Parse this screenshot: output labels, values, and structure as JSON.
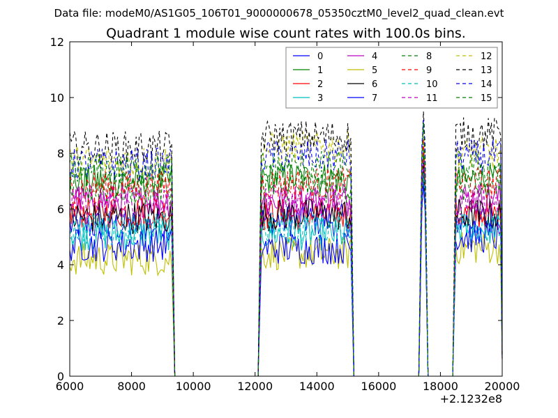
{
  "chart_data": {
    "type": "line",
    "suptitle": "Data file: modeM0/AS1G05_106T01_9000000678_05350cztM0_level2_quad_clean.evt",
    "title": "Quadrant 1 module wise count rates with 100.0s bins.",
    "xlabel": "",
    "ylabel": "",
    "x_offset_label": "+2.1232e8",
    "xlim": [
      6000,
      20000
    ],
    "ylim": [
      0,
      12
    ],
    "x_ticks": [
      6000,
      8000,
      10000,
      12000,
      14000,
      16000,
      18000,
      20000
    ],
    "y_ticks": [
      0,
      2,
      4,
      6,
      8,
      10,
      12
    ],
    "legend_position": "top-right",
    "legend_columns": 4,
    "segments": [
      {
        "start": 6000,
        "end": 9300
      },
      {
        "start": 12200,
        "end": 15100
      },
      {
        "start": 17400,
        "end": 17500
      },
      {
        "start": 18500,
        "end": 19950
      }
    ],
    "series": [
      {
        "name": "0",
        "color": "#0000ff",
        "style": "solid",
        "levels": [
          5.4,
          5.6,
          6.0,
          5.6
        ]
      },
      {
        "name": "1",
        "color": "#008000",
        "style": "solid",
        "levels": [
          7.0,
          7.1,
          6.8,
          7.0
        ]
      },
      {
        "name": "2",
        "color": "#ff0000",
        "style": "solid",
        "levels": [
          5.9,
          5.8,
          6.5,
          5.8
        ]
      },
      {
        "name": "3",
        "color": "#00bfbf",
        "style": "solid",
        "levels": [
          5.1,
          5.1,
          6.1,
          5.3
        ]
      },
      {
        "name": "4",
        "color": "#bf00bf",
        "style": "solid",
        "levels": [
          6.3,
          6.3,
          6.7,
          6.4
        ]
      },
      {
        "name": "5",
        "color": "#bfbf00",
        "style": "solid",
        "levels": [
          4.2,
          4.4,
          6.3,
          4.6
        ]
      },
      {
        "name": "6",
        "color": "#000000",
        "style": "solid",
        "levels": [
          5.7,
          5.8,
          6.4,
          5.8
        ]
      },
      {
        "name": "7",
        "color": "#0000ff",
        "style": "solid",
        "levels": [
          4.7,
          4.6,
          6.0,
          5.0
        ]
      },
      {
        "name": "8",
        "color": "#008000",
        "style": "dashed",
        "levels": [
          6.7,
          6.8,
          7.0,
          6.8
        ]
      },
      {
        "name": "9",
        "color": "#ff0000",
        "style": "dashed",
        "levels": [
          6.8,
          6.9,
          7.1,
          6.9
        ]
      },
      {
        "name": "10",
        "color": "#00bfbf",
        "style": "dashed",
        "levels": [
          5.3,
          5.3,
          6.3,
          5.4
        ]
      },
      {
        "name": "11",
        "color": "#bf00bf",
        "style": "dashed",
        "levels": [
          6.2,
          6.3,
          6.7,
          6.3
        ]
      },
      {
        "name": "12",
        "color": "#bfbf00",
        "style": "dashed",
        "levels": [
          7.7,
          8.2,
          7.9,
          8.0
        ]
      },
      {
        "name": "13",
        "color": "#000000",
        "style": "dashed",
        "levels": [
          8.2,
          8.6,
          8.2,
          8.7
        ]
      },
      {
        "name": "14",
        "color": "#0000ff",
        "style": "dashed",
        "levels": [
          7.6,
          7.9,
          8.1,
          7.9
        ]
      },
      {
        "name": "15",
        "color": "#008000",
        "style": "dashed",
        "levels": [
          7.4,
          7.5,
          7.7,
          7.5
        ]
      }
    ]
  }
}
